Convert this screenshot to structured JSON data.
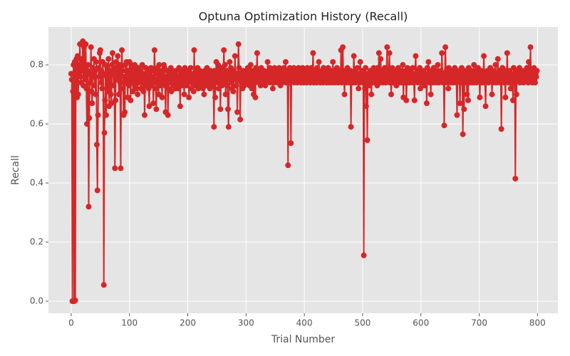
{
  "chart_data": {
    "type": "line",
    "title": "Optuna Optimization History (Recall)",
    "xlabel": "Trial Number",
    "ylabel": "Recall",
    "color": "#d62728",
    "grid": true,
    "xlim": [
      -39,
      835
    ],
    "ylim": [
      -0.041,
      0.928
    ],
    "xticks": [
      0,
      100,
      200,
      300,
      400,
      500,
      600,
      700,
      800
    ],
    "yticks": [
      {
        "value": 0,
        "label": "0.0"
      },
      0.2,
      0.4,
      0.6,
      0.8
    ],
    "x": [
      0,
      1,
      2,
      3,
      4,
      5,
      6,
      7,
      8,
      9,
      10,
      11,
      12,
      13,
      14,
      15,
      16,
      17,
      18,
      19,
      20,
      21,
      22,
      23,
      24,
      25,
      26,
      27,
      28,
      29,
      30,
      31,
      32,
      33,
      34,
      35,
      36,
      37,
      38,
      39,
      40,
      41,
      42,
      43,
      44,
      45,
      46,
      47,
      48,
      49,
      50,
      51,
      52,
      53,
      54,
      55,
      56,
      57,
      58,
      59,
      60,
      61,
      62,
      63,
      64,
      65,
      66,
      67,
      68,
      69,
      70,
      71,
      72,
      73,
      74,
      75,
      76,
      77,
      78,
      79,
      80,
      81,
      82,
      83,
      84,
      85,
      86,
      87,
      88,
      89,
      90,
      91,
      92,
      93,
      94,
      95,
      96,
      97,
      98,
      99,
      100,
      101,
      102,
      103,
      104,
      105,
      106,
      107,
      108,
      109,
      110,
      111,
      112,
      113,
      114,
      115,
      116,
      117,
      118,
      119,
      120,
      121,
      122,
      123,
      124,
      125,
      126,
      127,
      128,
      129,
      130,
      131,
      132,
      133,
      134,
      135,
      136,
      137,
      138,
      139,
      140,
      141,
      142,
      143,
      144,
      145,
      146,
      147,
      148,
      149,
      150,
      151,
      152,
      153,
      154,
      155,
      156,
      157,
      158,
      159,
      160,
      161,
      162,
      163,
      164,
      165,
      166,
      167,
      168,
      169,
      170,
      171,
      172,
      173,
      174,
      175,
      176,
      177,
      178,
      179,
      180,
      181,
      182,
      183,
      184,
      185,
      186,
      187,
      188,
      189,
      190,
      191,
      192,
      193,
      194,
      195,
      196,
      197,
      198,
      199,
      200,
      201,
      202,
      203,
      204,
      205,
      206,
      207,
      208,
      209,
      210,
      211,
      212,
      213,
      214,
      215,
      216,
      217,
      218,
      219,
      220,
      221,
      222,
      223,
      224,
      225,
      226,
      227,
      228,
      229,
      230,
      231,
      232,
      233,
      234,
      235,
      236,
      237,
      238,
      239,
      240,
      241,
      242,
      243,
      244,
      245,
      246,
      247,
      248,
      249,
      250,
      251,
      252,
      253,
      254,
      255,
      256,
      257,
      258,
      259,
      260,
      261,
      262,
      263,
      264,
      265,
      266,
      267,
      268,
      269,
      270,
      271,
      272,
      273,
      274,
      275,
      276,
      277,
      278,
      279,
      280,
      281,
      282,
      283,
      284,
      285,
      286,
      287,
      288,
      289,
      290,
      291,
      292,
      293,
      294,
      295,
      296,
      297,
      298,
      299,
      300,
      301,
      302,
      303,
      304,
      305,
      306,
      307,
      308,
      309,
      310,
      311,
      312,
      313,
      314,
      315,
      316,
      317,
      318,
      319,
      320,
      321,
      322,
      323,
      324,
      325,
      326,
      327,
      328,
      329,
      330,
      331,
      332,
      333,
      334,
      335,
      336,
      337,
      338,
      339,
      340,
      341,
      342,
      343,
      344,
      345,
      346,
      347,
      348,
      349,
      350,
      351,
      352,
      353,
      354,
      355,
      356,
      357,
      358,
      359,
      360,
      361,
      362,
      363,
      364,
      365,
      366,
      367,
      368,
      369,
      370,
      371,
      372,
      373,
      374,
      375,
      376,
      377,
      378,
      379,
      380,
      381,
      382,
      383,
      384,
      385,
      386,
      387,
      388,
      389,
      390,
      391,
      392,
      393,
      394,
      395,
      396,
      397,
      398,
      399,
      400,
      401,
      402,
      403,
      404,
      405,
      406,
      407,
      408,
      409,
      410,
      411,
      412,
      413,
      414,
      415,
      416,
      417,
      418,
      419,
      420,
      421,
      422,
      423,
      424,
      425,
      426,
      427,
      428,
      429,
      430,
      431,
      432,
      433,
      434,
      435,
      436,
      437,
      438,
      439,
      440,
      441,
      442,
      443,
      444,
      445,
      446,
      447,
      448,
      449,
      450,
      451,
      452,
      453,
      454,
      455,
      456,
      457,
      458,
      459,
      460,
      461,
      462,
      463,
      464,
      465,
      466,
      467,
      468,
      469,
      470,
      471,
      472,
      473,
      474,
      475,
      476,
      477,
      478,
      479,
      480,
      481,
      482,
      483,
      484,
      485,
      486,
      487,
      488,
      489,
      490,
      491,
      492,
      493,
      494,
      495,
      496,
      497,
      498,
      499,
      500,
      501,
      502,
      503,
      504,
      505,
      506,
      507,
      508,
      509,
      510,
      511,
      512,
      513,
      514,
      515,
      516,
      517,
      518,
      519,
      520,
      521,
      522,
      523,
      524,
      525,
      526,
      527,
      528,
      529,
      530,
      531,
      532,
      533,
      534,
      535,
      536,
      537,
      538,
      539,
      540,
      541,
      542,
      543,
      544,
      545,
      546,
      547,
      548,
      549,
      550,
      551,
      552,
      553,
      554,
      555,
      556,
      557,
      558,
      559,
      560,
      561,
      562,
      563,
      564,
      565,
      566,
      567,
      568,
      569,
      570,
      571,
      572,
      573,
      574,
      575,
      576,
      577,
      578,
      579,
      580,
      581,
      582,
      583,
      584,
      585,
      586,
      587,
      588,
      589,
      590,
      591,
      592,
      593,
      594,
      595,
      596,
      597,
      598,
      599,
      600,
      601,
      602,
      603,
      604,
      605,
      606,
      607,
      608,
      609,
      610,
      611,
      612,
      613,
      614,
      615,
      616,
      617,
      618,
      619,
      620,
      621,
      622,
      623,
      624,
      625,
      626,
      627,
      628,
      629,
      630,
      631,
      632,
      633,
      634,
      635,
      636,
      637,
      638,
      639,
      640,
      641,
      642,
      643,
      644,
      645,
      646,
      647,
      648,
      649,
      650,
      651,
      652,
      653,
      654,
      655,
      656,
      657,
      658,
      659,
      660,
      661,
      662,
      663,
      664,
      665,
      666,
      667,
      668,
      669,
      670,
      671,
      672,
      673,
      674,
      675,
      676,
      677,
      678,
      679,
      680,
      681,
      682,
      683,
      684,
      685,
      686,
      687,
      688,
      689,
      690,
      691,
      692,
      693,
      694,
      695,
      696,
      697,
      698,
      699,
      700,
      701,
      702,
      703,
      704,
      705,
      706,
      707,
      708,
      709,
      710,
      711,
      712,
      713,
      714,
      715,
      716,
      717,
      718,
      719,
      720,
      721,
      722,
      723,
      724,
      725,
      726,
      727,
      728,
      729,
      730,
      731,
      732,
      733,
      734,
      735,
      736,
      737,
      738,
      739,
      740,
      741,
      742,
      743,
      744,
      745,
      746,
      747,
      748,
      749,
      750,
      751,
      752,
      753,
      754,
      755,
      756,
      757,
      758,
      759,
      760,
      761,
      762,
      763,
      764,
      765,
      766,
      767,
      768,
      769,
      770,
      771,
      772,
      773,
      774,
      775,
      776,
      777,
      778,
      779,
      780,
      781,
      782,
      783,
      784,
      785,
      786,
      787,
      788,
      789,
      790,
      791,
      792,
      793,
      794,
      795,
      796,
      797,
      798,
      799
    ],
    "values": [
      0.77,
      0.75,
      0.0,
      0.71,
      0.8,
      0.0,
      0.81,
      0.003,
      0.79,
      0.82,
      0.69,
      0.83,
      0.7,
      0.77,
      0.8,
      0.87,
      0.76,
      0.74,
      0.82,
      0.78,
      0.88,
      0.73,
      0.86,
      0.79,
      0.75,
      0.87,
      0.72,
      0.6,
      0.78,
      0.8,
      0.32,
      0.62,
      0.77,
      0.74,
      0.86,
      0.71,
      0.67,
      0.79,
      0.76,
      0.82,
      0.73,
      0.78,
      0.7,
      0.81,
      0.53,
      0.375,
      0.63,
      0.79,
      0.76,
      0.84,
      0.85,
      0.74,
      0.78,
      0.72,
      0.81,
      0.77,
      0.055,
      0.57,
      0.68,
      0.8,
      0.63,
      0.76,
      0.79,
      0.71,
      0.82,
      0.66,
      0.74,
      0.78,
      0.7,
      0.67,
      0.8,
      0.84,
      0.77,
      0.73,
      0.79,
      0.45,
      0.68,
      0.81,
      0.75,
      0.78,
      0.83,
      0.76,
      0.7,
      0.8,
      0.74,
      0.45,
      0.79,
      0.85,
      0.78,
      0.72,
      0.63,
      0.76,
      0.64,
      0.8,
      0.74,
      0.81,
      0.77,
      0.69,
      0.78,
      0.73,
      0.81,
      0.76,
      0.68,
      0.8,
      0.74,
      0.79,
      0.71,
      0.77,
      0.75,
      0.8,
      0.73,
      0.78,
      0.72,
      0.76,
      0.7,
      0.79,
      0.74,
      0.77,
      0.75,
      0.78,
      0.72,
      0.76,
      0.8,
      0.74,
      0.71,
      0.77,
      0.63,
      0.75,
      0.79,
      0.73,
      0.76,
      0.74,
      0.78,
      0.72,
      0.66,
      0.77,
      0.75,
      0.79,
      0.73,
      0.76,
      0.74,
      0.67,
      0.78,
      0.85,
      0.75,
      0.72,
      0.65,
      0.77,
      0.79,
      0.74,
      0.7,
      0.8,
      0.76,
      0.73,
      0.78,
      0.75,
      0.69,
      0.77,
      0.74,
      0.8,
      0.79,
      0.73,
      0.64,
      0.76,
      0.75,
      0.78,
      0.63,
      0.72,
      0.77,
      0.74,
      0.76,
      0.79,
      0.71,
      0.75,
      0.78,
      0.73,
      0.76,
      0.74,
      0.77,
      0.72,
      0.78,
      0.75,
      0.73,
      0.76,
      0.72,
      0.79,
      0.74,
      0.66,
      0.77,
      0.75,
      0.78,
      0.73,
      0.76,
      0.74,
      0.7,
      0.79,
      0.75,
      0.77,
      0.73,
      0.76,
      0.74,
      0.78,
      0.69,
      0.76,
      0.75,
      0.79,
      0.72,
      0.77,
      0.74,
      0.76,
      0.71,
      0.85,
      0.75,
      0.73,
      0.78,
      0.76,
      0.74,
      0.79,
      0.72,
      0.77,
      0.75,
      0.78,
      0.73,
      0.76,
      0.74,
      0.77,
      0.72,
      0.75,
      0.7,
      0.78,
      0.74,
      0.76,
      0.73,
      0.79,
      0.75,
      0.77,
      0.74,
      0.76,
      0.72,
      0.78,
      0.75,
      0.77,
      0.74,
      0.76,
      0.73,
      0.59,
      0.78,
      0.69,
      0.75,
      0.81,
      0.77,
      0.74,
      0.8,
      0.72,
      0.76,
      0.78,
      0.65,
      0.75,
      0.79,
      0.73,
      0.76,
      0.77,
      0.85,
      0.74,
      0.8,
      0.7,
      0.76,
      0.78,
      0.73,
      0.65,
      0.59,
      0.75,
      0.81,
      0.77,
      0.79,
      0.74,
      0.72,
      0.76,
      0.71,
      0.78,
      0.75,
      0.83,
      0.75,
      0.73,
      0.77,
      0.64,
      0.76,
      0.87,
      0.79,
      0.75,
      0.615,
      0.77,
      0.74,
      0.76,
      0.72,
      0.78,
      0.75,
      0.73,
      0.77,
      0.74,
      0.76,
      0.78,
      0.74,
      0.79,
      0.75,
      0.77,
      0.73,
      0.76,
      0.8,
      0.74,
      0.72,
      0.78,
      0.75,
      0.7,
      0.77,
      0.74,
      0.69,
      0.79,
      0.76,
      0.84,
      0.75,
      0.77,
      0.74,
      0.78,
      0.76,
      0.73,
      0.79,
      0.75,
      0.77,
      0.74,
      0.76,
      0.78,
      0.75,
      0.73,
      0.77,
      0.76,
      0.74,
      0.81,
      0.75,
      0.78,
      0.76,
      0.79,
      0.74,
      0.77,
      0.75,
      0.78,
      0.72,
      0.76,
      0.74,
      0.79,
      0.75,
      0.77,
      0.76,
      0.78,
      0.74,
      0.77,
      0.75,
      0.79,
      0.76,
      0.73,
      0.78,
      0.75,
      0.77,
      0.74,
      0.76,
      0.79,
      0.75,
      0.77,
      0.81,
      0.74,
      0.76,
      0.78,
      0.46,
      0.77,
      0.75,
      0.79,
      0.74,
      0.535,
      0.78,
      0.76,
      0.77,
      0.75,
      0.79,
      0.74,
      0.76,
      0.78,
      0.75,
      0.77,
      0.74,
      0.76,
      0.79,
      0.75,
      0.77,
      0.78,
      0.74,
      0.76,
      0.75,
      0.79,
      0.77,
      0.74,
      0.76,
      0.78,
      0.75,
      0.77,
      0.74,
      0.79,
      0.76,
      0.75,
      0.77,
      0.78,
      0.74,
      0.76,
      0.79,
      0.75,
      0.77,
      0.84,
      0.74,
      0.76,
      0.78,
      0.75,
      0.77,
      0.74,
      0.79,
      0.76,
      0.75,
      0.81,
      0.77,
      0.74,
      0.76,
      0.78,
      0.75,
      0.77,
      0.74,
      0.79,
      0.76,
      0.75,
      0.77,
      0.78,
      0.74,
      0.76,
      0.75,
      0.79,
      0.77,
      0.74,
      0.76,
      0.78,
      0.75,
      0.77,
      0.74,
      0.81,
      0.76,
      0.75,
      0.78,
      0.74,
      0.77,
      0.76,
      0.79,
      0.75,
      0.74,
      0.77,
      0.76,
      0.78,
      0.75,
      0.85,
      0.74,
      0.77,
      0.86,
      0.76,
      0.75,
      0.7,
      0.78,
      0.74,
      0.77,
      0.76,
      0.79,
      0.75,
      0.74,
      0.77,
      0.76,
      0.78,
      0.59,
      0.75,
      0.77,
      0.74,
      0.76,
      0.83,
      0.75,
      0.78,
      0.74,
      0.77,
      0.76,
      0.79,
      0.75,
      0.72,
      0.77,
      0.74,
      0.81,
      0.76,
      0.75,
      0.78,
      0.74,
      0.77,
      0.155,
      0.76,
      0.72,
      0.79,
      0.66,
      0.75,
      0.545,
      0.77,
      0.74,
      0.76,
      0.73,
      0.78,
      0.75,
      0.7,
      0.77,
      0.74,
      0.76,
      0.79,
      0.75,
      0.77,
      0.74,
      0.78,
      0.76,
      0.73,
      0.79,
      0.75,
      0.84,
      0.77,
      0.74,
      0.82,
      0.76,
      0.75,
      0.78,
      0.74,
      0.77,
      0.76,
      0.79,
      0.75,
      0.74,
      0.77,
      0.86,
      0.76,
      0.75,
      0.78,
      0.84,
      0.74,
      0.77,
      0.7,
      0.76,
      0.79,
      0.75,
      0.74,
      0.77,
      0.76,
      0.78,
      0.75,
      0.73,
      0.77,
      0.76,
      0.79,
      0.74,
      0.75,
      0.77,
      0.76,
      0.78,
      0.74,
      0.75,
      0.8,
      0.69,
      0.77,
      0.74,
      0.76,
      0.78,
      0.68,
      0.75,
      0.79,
      0.77,
      0.74,
      0.76,
      0.75,
      0.78,
      0.74,
      0.77,
      0.76,
      0.79,
      0.75,
      0.74,
      0.68,
      0.77,
      0.83,
      0.76,
      0.75,
      0.78,
      0.74,
      0.77,
      0.76,
      0.79,
      0.72,
      0.75,
      0.77,
      0.74,
      0.76,
      0.78,
      0.75,
      0.73,
      0.77,
      0.74,
      0.76,
      0.67,
      0.79,
      0.75,
      0.81,
      0.77,
      0.74,
      0.76,
      0.7,
      0.78,
      0.75,
      0.77,
      0.74,
      0.79,
      0.76,
      0.75,
      0.78,
      0.74,
      0.77,
      0.76,
      0.8,
      0.75,
      0.74,
      0.77,
      0.76,
      0.78,
      0.75,
      0.84,
      0.77,
      0.74,
      0.76,
      0.595,
      0.77,
      0.86,
      0.75,
      0.78,
      0.74,
      0.76,
      0.72,
      0.79,
      0.75,
      0.77,
      0.74,
      0.76,
      0.78,
      0.75,
      0.77,
      0.74,
      0.76,
      0.79,
      0.75,
      0.77,
      0.74,
      0.63,
      0.76,
      0.78,
      0.75,
      0.77,
      0.67,
      0.74,
      0.76,
      0.79,
      0.75,
      0.565,
      0.77,
      0.65,
      0.76,
      0.78,
      0.74,
      0.77,
      0.7,
      0.76,
      0.68,
      0.79,
      0.75,
      0.77,
      0.74,
      0.76,
      0.78,
      0.75,
      0.77,
      0.74,
      0.8,
      0.76,
      0.75,
      0.78,
      0.74,
      0.77,
      0.76,
      0.79,
      0.75,
      0.77,
      0.69,
      0.76,
      0.78,
      0.75,
      0.74,
      0.77,
      0.76,
      0.83,
      0.75,
      0.74,
      0.66,
      0.77,
      0.76,
      0.78,
      0.75,
      0.74,
      0.77,
      0.76,
      0.79,
      0.75,
      0.77,
      0.7,
      0.76,
      0.78,
      0.74,
      0.77,
      0.75,
      0.8,
      0.76,
      0.74,
      0.77,
      0.82,
      0.75,
      0.76,
      0.78,
      0.74,
      0.77,
      0.583,
      0.76,
      0.79,
      0.75,
      0.77,
      0.74,
      0.76,
      0.69,
      0.78,
      0.75,
      0.84,
      0.77,
      0.74,
      0.76,
      0.78,
      0.75,
      0.72,
      0.77,
      0.76,
      0.74,
      0.68,
      0.79,
      0.75,
      0.77,
      0.415,
      0.76,
      0.7,
      0.78,
      0.75,
      0.77,
      0.76,
      0.79,
      0.74,
      0.77,
      0.76,
      0.78,
      0.75,
      0.77,
      0.74,
      0.76,
      0.78,
      0.75,
      0.77,
      0.76,
      0.79,
      0.75,
      0.74,
      0.81,
      0.77,
      0.76,
      0.86,
      0.75,
      0.78,
      0.74,
      0.77,
      0.76,
      0.79,
      0.75,
      0.74,
      0.77,
      0.76,
      0.78
    ]
  }
}
